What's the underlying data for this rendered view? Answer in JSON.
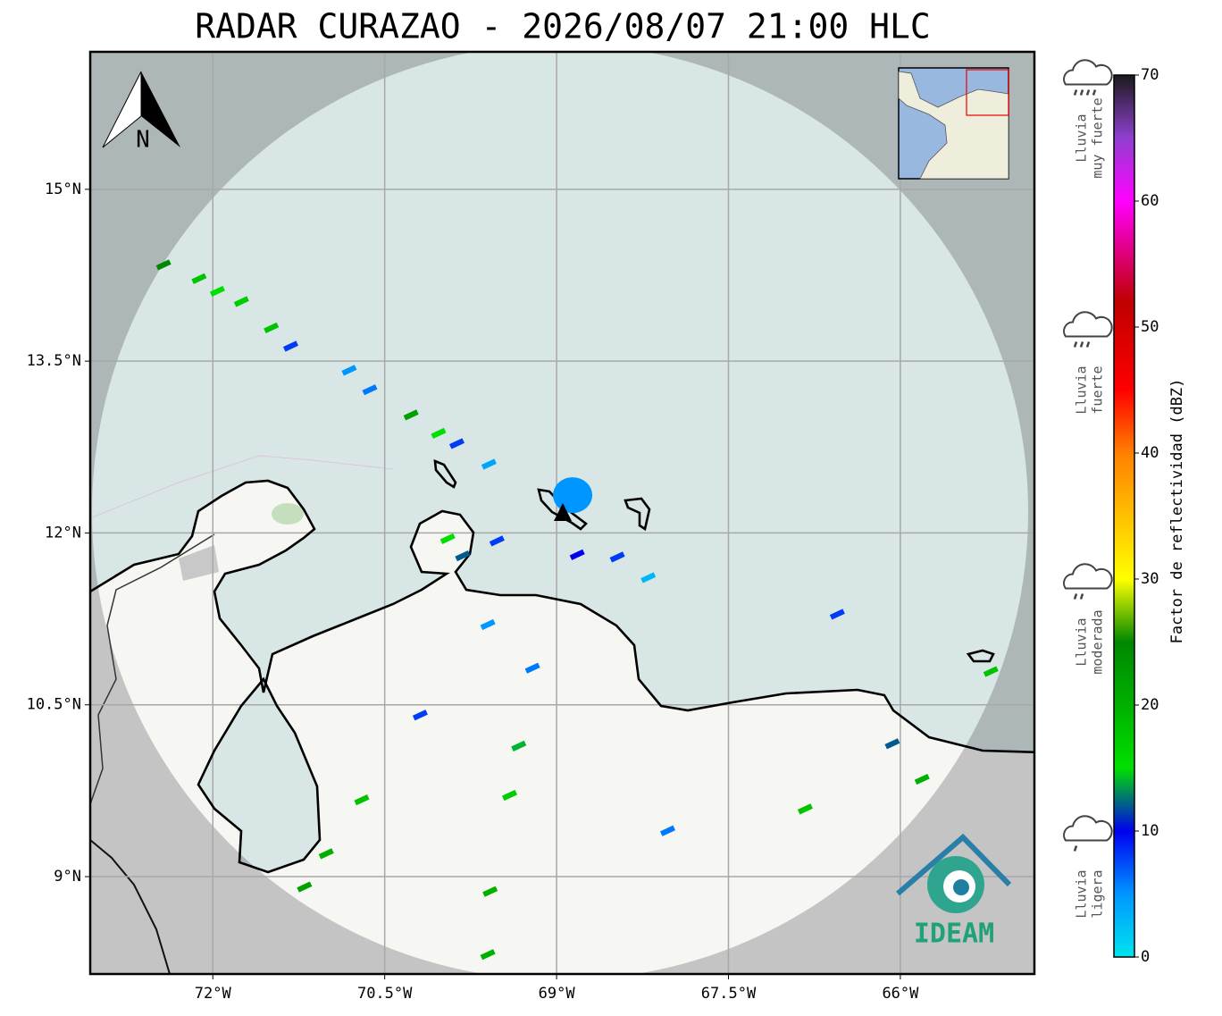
{
  "map": {
    "title": "RADAR CURAZAO - 2026/08/07 21:00 HLC",
    "xlim": [
      -73.07,
      -64.83
    ],
    "ylim": [
      8.15,
      16.2
    ],
    "xticks": [
      {
        "value": -72,
        "label": "72°W"
      },
      {
        "value": -70.5,
        "label": "70.5°W"
      },
      {
        "value": -69,
        "label": "69°W"
      },
      {
        "value": -67.5,
        "label": "67.5°W"
      },
      {
        "value": -66,
        "label": "66°W"
      }
    ],
    "yticks": [
      {
        "value": 9,
        "label": "9°N"
      },
      {
        "value": 10.5,
        "label": "10.5°N"
      },
      {
        "value": 12,
        "label": "12°N"
      },
      {
        "value": 13.5,
        "label": "13.5°N"
      },
      {
        "value": 15,
        "label": "15°N"
      }
    ],
    "grid": true,
    "north_label": "N",
    "logo_text": "IDEAM",
    "colorbar": {
      "label": "Factor de reflectividad (dBZ)",
      "lim": [
        0,
        70
      ],
      "ticks": [
        0,
        10,
        20,
        30,
        40,
        50,
        60,
        70
      ],
      "colorscale": [
        [
          0,
          "#00e5ee"
        ],
        [
          5,
          "#0096ff"
        ],
        [
          10,
          "#0000f0"
        ],
        [
          15,
          "#00e000"
        ],
        [
          20,
          "#00b000"
        ],
        [
          25,
          "#008800"
        ],
        [
          30,
          "#ffff00"
        ],
        [
          35,
          "#ffc000"
        ],
        [
          40,
          "#ff8000"
        ],
        [
          45,
          "#ff0000"
        ],
        [
          52,
          "#c00000"
        ],
        [
          60,
          "#ff00ff"
        ],
        [
          65,
          "#9040d0"
        ],
        [
          70,
          "#1a1a1a"
        ]
      ]
    },
    "rain_legend": [
      {
        "lines": [
          "Lluvia",
          "muy fuerte"
        ],
        "dbz": 65
      },
      {
        "lines": [
          "Lluvia",
          "fuerte"
        ],
        "dbz": 45
      },
      {
        "lines": [
          "Lluvia",
          "moderada"
        ],
        "dbz": 25
      },
      {
        "lines": [
          "Lluvia",
          "ligera"
        ],
        "dbz": 5
      }
    ],
    "echoes": [
      {
        "lon": -72.43,
        "lat": 14.34,
        "dbz": 25
      },
      {
        "lon": -72.12,
        "lat": 14.22,
        "dbz": 18
      },
      {
        "lon": -71.96,
        "lat": 14.11,
        "dbz": 15
      },
      {
        "lon": -71.75,
        "lat": 14.02,
        "dbz": 17
      },
      {
        "lon": -71.49,
        "lat": 13.79,
        "dbz": 18
      },
      {
        "lon": -71.32,
        "lat": 13.63,
        "dbz": 8
      },
      {
        "lon": -70.81,
        "lat": 13.42,
        "dbz": 5
      },
      {
        "lon": -70.63,
        "lat": 13.25,
        "dbz": 6
      },
      {
        "lon": -70.27,
        "lat": 13.03,
        "dbz": 22
      },
      {
        "lon": -70.03,
        "lat": 12.87,
        "dbz": 15
      },
      {
        "lon": -69.87,
        "lat": 12.78,
        "dbz": 8
      },
      {
        "lon": -69.59,
        "lat": 12.6,
        "dbz": 4
      },
      {
        "lon": -68.86,
        "lat": 12.33,
        "dbz": 5
      },
      {
        "lon": -69.95,
        "lat": 11.95,
        "dbz": 15
      },
      {
        "lon": -69.82,
        "lat": 11.8,
        "dbz": 12
      },
      {
        "lon": -69.52,
        "lat": 11.93,
        "dbz": 8
      },
      {
        "lon": -68.82,
        "lat": 11.81,
        "dbz": 10
      },
      {
        "lon": -68.47,
        "lat": 11.79,
        "dbz": 8
      },
      {
        "lon": -68.2,
        "lat": 11.61,
        "dbz": 3
      },
      {
        "lon": -69.6,
        "lat": 11.2,
        "dbz": 5
      },
      {
        "lon": -69.21,
        "lat": 10.82,
        "dbz": 6
      },
      {
        "lon": -70.19,
        "lat": 10.41,
        "dbz": 8
      },
      {
        "lon": -69.33,
        "lat": 10.14,
        "dbz": 14
      },
      {
        "lon": -69.41,
        "lat": 9.71,
        "dbz": 17
      },
      {
        "lon": -70.7,
        "lat": 9.67,
        "dbz": 18
      },
      {
        "lon": -71.01,
        "lat": 9.2,
        "dbz": 20
      },
      {
        "lon": -71.2,
        "lat": 8.91,
        "dbz": 22
      },
      {
        "lon": -69.58,
        "lat": 8.87,
        "dbz": 20
      },
      {
        "lon": -69.6,
        "lat": 8.32,
        "dbz": 20
      },
      {
        "lon": -68.03,
        "lat": 9.4,
        "dbz": 6
      },
      {
        "lon": -66.83,
        "lat": 9.59,
        "dbz": 18
      },
      {
        "lon": -66.55,
        "lat": 11.29,
        "dbz": 8
      },
      {
        "lon": -65.81,
        "lat": 9.85,
        "dbz": 20
      },
      {
        "lon": -65.21,
        "lat": 10.79,
        "dbz": 18
      },
      {
        "lon": -66.07,
        "lat": 10.16,
        "dbz": 12
      }
    ]
  }
}
